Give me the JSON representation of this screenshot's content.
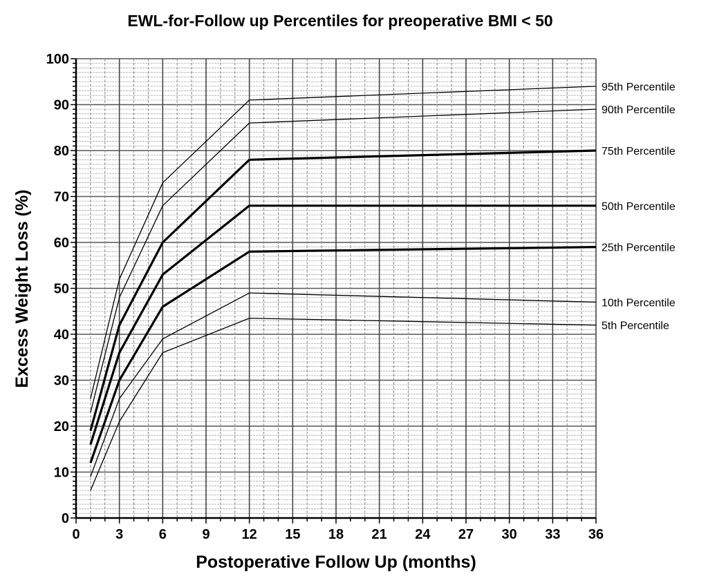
{
  "chart_data": {
    "type": "line",
    "title": "EWL-for-Follow up Percentiles for preoperative BMI < 50",
    "xlabel": "Postoperative Follow Up (months)",
    "ylabel": "Excess Weight Loss (%)",
    "xlim": [
      0,
      36
    ],
    "ylim": [
      0,
      100
    ],
    "xticks": [
      0,
      3,
      6,
      9,
      12,
      15,
      18,
      21,
      24,
      27,
      30,
      33,
      36
    ],
    "yticks": [
      0,
      10,
      20,
      30,
      40,
      50,
      60,
      70,
      80,
      90,
      100
    ],
    "grid": true,
    "legend": "right, labels at line ends",
    "x": [
      1,
      3,
      6,
      12,
      36
    ],
    "series": [
      {
        "name": "95th Percentile",
        "values": [
          26,
          52,
          73,
          91,
          94
        ],
        "bold": false
      },
      {
        "name": "90th Percentile",
        "values": [
          23,
          48,
          68,
          86,
          89
        ],
        "bold": false
      },
      {
        "name": "75th Percentile",
        "values": [
          19,
          42,
          60,
          78,
          80
        ],
        "bold": true
      },
      {
        "name": "50th Percentile",
        "values": [
          16,
          36,
          53,
          68,
          68
        ],
        "bold": true
      },
      {
        "name": "25th Percentile",
        "values": [
          12,
          30,
          46,
          58,
          59
        ],
        "bold": true
      },
      {
        "name": "10th Percentile",
        "values": [
          9,
          26,
          39,
          49,
          47
        ],
        "bold": false
      },
      {
        "name": "5th Percentile",
        "values": [
          6,
          21,
          36,
          43.5,
          42
        ],
        "bold": false
      }
    ]
  }
}
